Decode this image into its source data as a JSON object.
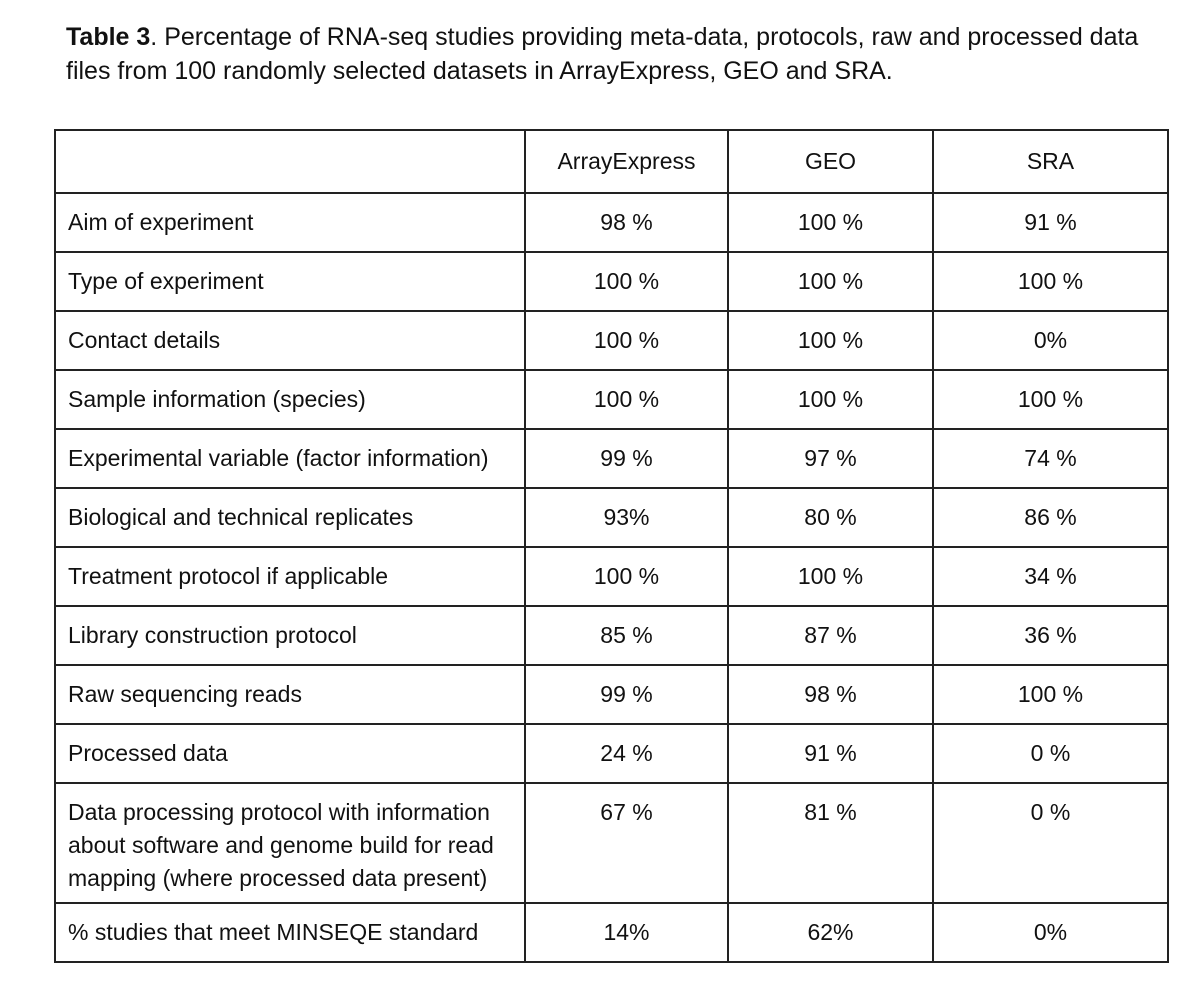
{
  "caption": {
    "label": "Table 3",
    "text": ". Percentage of RNA-seq studies providing meta-data, protocols, raw and processed data files from 100 randomly selected datasets in ArrayExpress, GEO and SRA."
  },
  "table": {
    "columns": [
      "",
      "ArrayExpress",
      "GEO",
      "SRA"
    ],
    "rows": [
      {
        "label": "Aim of experiment",
        "values": [
          "98 %",
          "100 %",
          "91 %"
        ]
      },
      {
        "label": "Type of experiment",
        "values": [
          "100 %",
          "100 %",
          "100 %"
        ]
      },
      {
        "label": "Contact details",
        "values": [
          "100 %",
          "100 %",
          "0%"
        ]
      },
      {
        "label": "Sample information (species)",
        "values": [
          "100 %",
          "100 %",
          "100 %"
        ]
      },
      {
        "label": "Experimental variable (factor information)",
        "values": [
          "99 %",
          "97 %",
          "74 %"
        ]
      },
      {
        "label": "Biological and technical replicates",
        "values": [
          "93%",
          "80 %",
          "86 %"
        ]
      },
      {
        "label": "Treatment protocol if applicable",
        "values": [
          "100 %",
          "100 %",
          "34 %"
        ]
      },
      {
        "label": "Library construction protocol",
        "values": [
          "85 %",
          "87 %",
          "36 %"
        ]
      },
      {
        "label": "Raw sequencing reads",
        "values": [
          "99 %",
          "98 %",
          "100 %"
        ]
      },
      {
        "label": "Processed data",
        "values": [
          "24 %",
          "91 %",
          "0 %"
        ]
      },
      {
        "label": "Data processing protocol with information about software and genome build for read mapping (where processed data present)",
        "values": [
          "67 %",
          "81 %",
          "0 %"
        ]
      },
      {
        "label": "% studies that meet MINSEQE standard",
        "values": [
          "14%",
          "62%",
          "0%"
        ]
      }
    ]
  }
}
